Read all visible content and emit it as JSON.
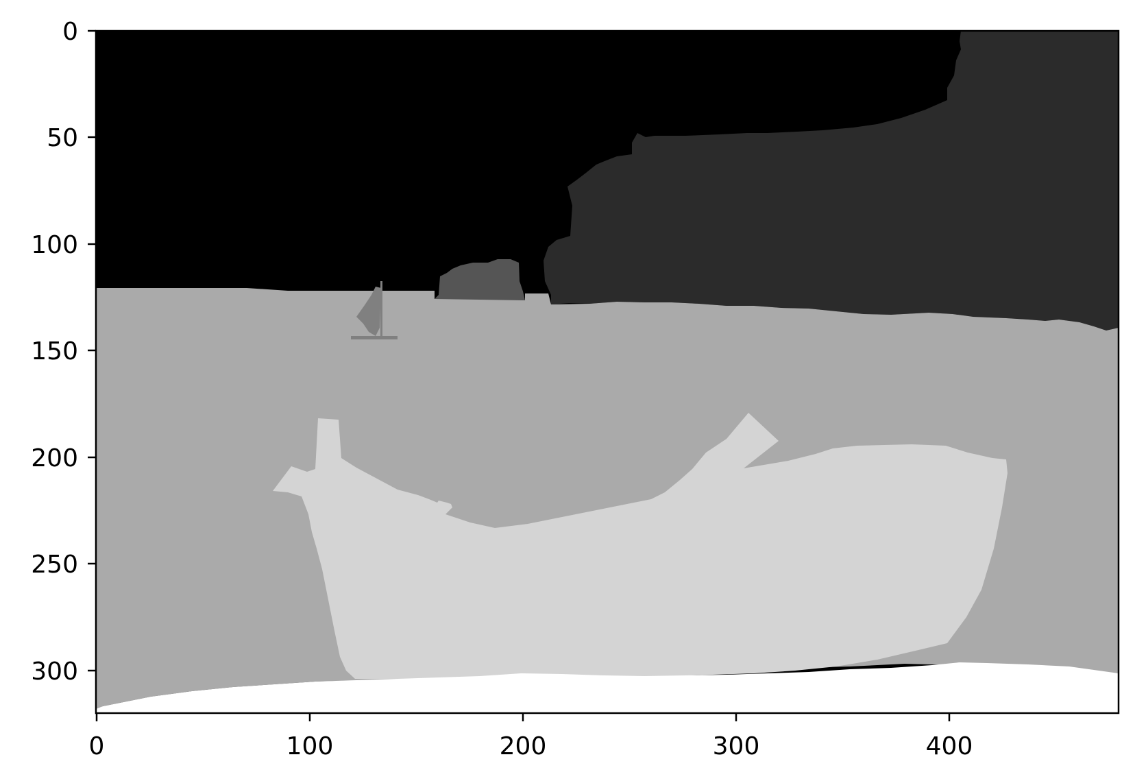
{
  "figure": {
    "background": "#ffffff"
  },
  "image_axes": {
    "x_ticks": [
      "0",
      "100",
      "200",
      "300",
      "400"
    ],
    "y_ticks": [
      "0",
      "50",
      "100",
      "150",
      "200",
      "250",
      "300"
    ],
    "x_range": [
      0,
      480
    ],
    "y_range": [
      0,
      320
    ],
    "y_inverted": true,
    "grid": false
  },
  "segmentation": {
    "colormap": "gray",
    "regions": [
      {
        "name": "sky",
        "color": "#000000"
      },
      {
        "name": "distant-island",
        "color": "#2b2b2b"
      },
      {
        "name": "small-rock",
        "color": "#555555"
      },
      {
        "name": "sailboat",
        "color": "#808080"
      },
      {
        "name": "sea",
        "color": "#aaaaaa"
      },
      {
        "name": "boat",
        "color": "#d4d4d4"
      },
      {
        "name": "foreground-sand",
        "color": "#ffffff"
      }
    ]
  }
}
